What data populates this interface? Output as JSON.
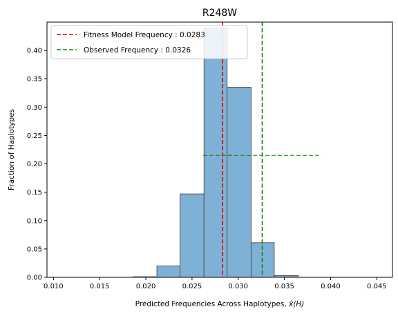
{
  "chart_data": {
    "type": "bar",
    "title": "R248W",
    "xlabel_prefix": "Predicted Frequencies Across Haplotypes, ",
    "xlabel_math": "x̂(H)",
    "ylabel": "Fraction of Haplotypes",
    "xlim": [
      0.0093,
      0.0467
    ],
    "ylim": [
      0,
      0.45
    ],
    "xticks": [
      0.01,
      0.015,
      0.02,
      0.025,
      0.03,
      0.035,
      0.04,
      0.045
    ],
    "xtick_labels": [
      "0.010",
      "0.015",
      "0.020",
      "0.025",
      "0.030",
      "0.035",
      "0.040",
      "0.045"
    ],
    "yticks": [
      0.0,
      0.05,
      0.1,
      0.15,
      0.2,
      0.25,
      0.3,
      0.35,
      0.4
    ],
    "ytick_labels": [
      "0.00",
      "0.05",
      "0.10",
      "0.15",
      "0.20",
      "0.25",
      "0.30",
      "0.35",
      "0.40"
    ],
    "bin_edges": [
      0.0186,
      0.0212,
      0.0237,
      0.0263,
      0.0288,
      0.0314,
      0.0339,
      0.0365
    ],
    "values": [
      0.001,
      0.02,
      0.147,
      0.44,
      0.335,
      0.061,
      0.003
    ],
    "bar_color": "#7fb0d5",
    "bar_edge_color": "#555555",
    "vlines": [
      {
        "label": "Fitness Model Frequency : 0.0283",
        "x": 0.0283,
        "color": "#dd0000"
      },
      {
        "label": "Observed Frequency : 0.0326",
        "x": 0.0326,
        "color": "#008800"
      }
    ],
    "hline": {
      "y": 0.215,
      "x_start": 0.0262,
      "x_end": 0.039,
      "color": "#008800"
    },
    "legend_position": "upper-left",
    "grid": false
  }
}
